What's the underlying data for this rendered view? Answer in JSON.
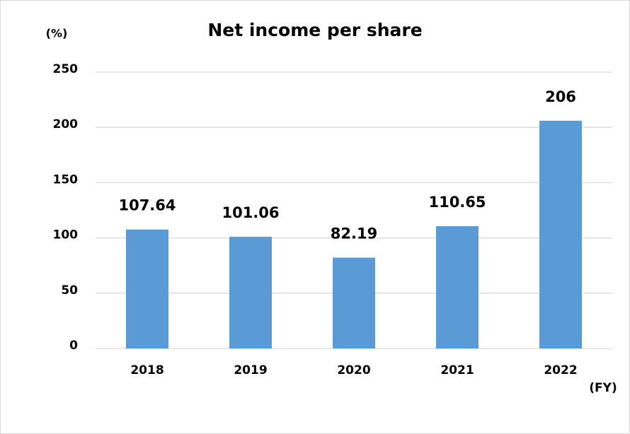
{
  "chart_data": {
    "type": "bar",
    "title": "Net income per share",
    "y_unit_label": "(%)",
    "x_unit_label": "(FY)",
    "categories": [
      "2018",
      "2019",
      "2020",
      "2021",
      "2022"
    ],
    "values": [
      107.64,
      101.06,
      82.19,
      110.65,
      206
    ],
    "color": "#5b9bd5",
    "ylim": [
      0,
      250
    ],
    "yticks": [
      0,
      50,
      100,
      150,
      200,
      250
    ],
    "grid": true
  }
}
